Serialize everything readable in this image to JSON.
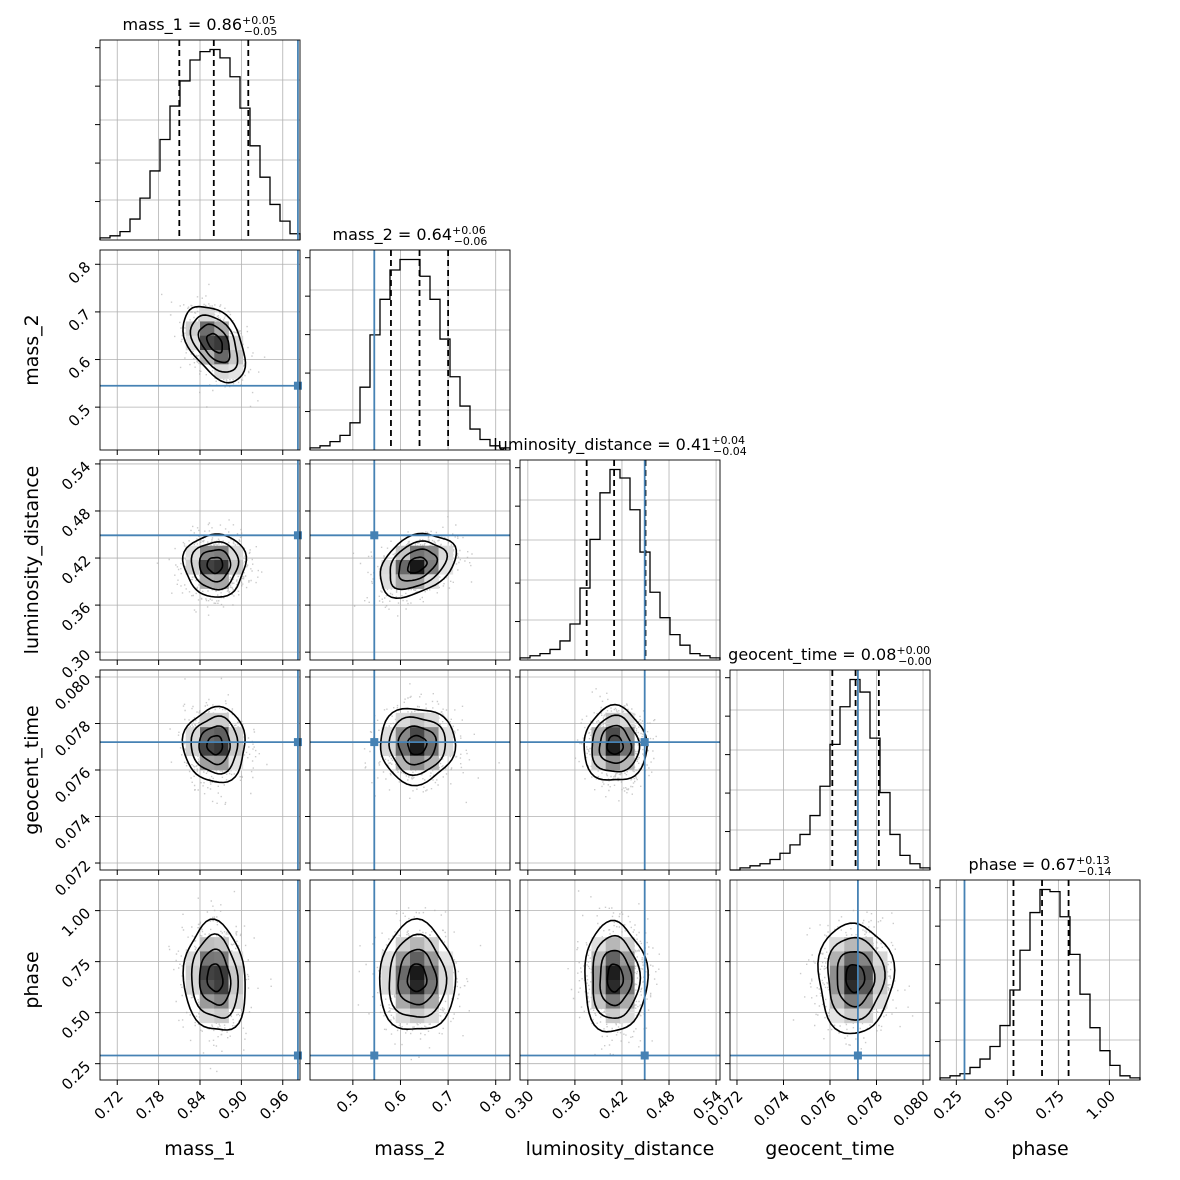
{
  "chart_data": {
    "type": "corner",
    "parameters": [
      {
        "name": "mass_1",
        "range": [
          0.695,
          0.985
        ],
        "ticks": [
          0.72,
          0.78,
          0.84,
          0.9,
          0.96
        ],
        "tick_labels": [
          "0.72",
          "0.78",
          "0.84",
          "0.90",
          "0.96"
        ],
        "truth": 0.982,
        "median": 0.86,
        "quantiles": [
          0.81,
          0.86,
          0.91
        ],
        "title": {
          "lead": "mass_1 = 0.86",
          "plus": "+0.05",
          "minus": "−0.05"
        },
        "hist_counts": [
          1,
          2,
          4,
          10,
          20,
          33,
          48,
          64,
          76,
          86,
          90,
          91,
          87,
          78,
          63,
          45,
          30,
          17,
          9,
          3
        ]
      },
      {
        "name": "mass_2",
        "range": [
          0.41,
          0.83
        ],
        "ticks": [
          0.5,
          0.6,
          0.7,
          0.8
        ],
        "tick_labels": [
          "0.5",
          "0.6",
          "0.7",
          "0.8"
        ],
        "truth": 0.545,
        "median": 0.64,
        "quantiles": [
          0.58,
          0.64,
          0.7
        ],
        "title": {
          "lead": "mass_2 = 0.64",
          "plus": "+0.06",
          "minus": "−0.06"
        },
        "hist_counts": [
          1,
          2,
          4,
          7,
          13,
          30,
          55,
          72,
          86,
          91,
          91,
          83,
          72,
          53,
          35,
          21,
          10,
          5,
          2,
          1
        ]
      },
      {
        "name": "luminosity_distance",
        "range": [
          0.29,
          0.545
        ],
        "ticks": [
          0.3,
          0.36,
          0.42,
          0.48,
          0.54
        ],
        "tick_labels": [
          "0.30",
          "0.36",
          "0.42",
          "0.48",
          "0.54"
        ],
        "truth": 0.449,
        "median": 0.41,
        "quantiles": [
          0.375,
          0.41,
          0.45
        ],
        "title": {
          "lead": "luminosity_distance = 0.41",
          "plus": "+0.04",
          "minus": "−0.04"
        },
        "hist_counts": [
          1,
          2,
          3,
          5,
          9,
          17,
          34,
          57,
          79,
          90,
          86,
          71,
          51,
          32,
          20,
          12,
          7,
          3,
          2,
          1
        ]
      },
      {
        "name": "geocent_time",
        "range": [
          0.0717,
          0.0803
        ],
        "ticks": [
          0.072,
          0.074,
          0.076,
          0.078,
          0.08
        ],
        "tick_labels": [
          "0.072",
          "0.074",
          "0.076",
          "0.078",
          "0.080"
        ],
        "truth": 0.0772,
        "median": 0.08,
        "quantiles": [
          0.0761,
          0.0771,
          0.0781
        ],
        "title": {
          "lead": "geocent_time = 0.08",
          "plus": "+0.00",
          "minus": "−0.00"
        },
        "hist_counts": [
          0,
          1,
          2,
          3,
          5,
          8,
          12,
          17,
          26,
          40,
          60,
          78,
          91,
          85,
          63,
          37,
          17,
          7,
          3,
          1
        ]
      },
      {
        "name": "phase",
        "range": [
          0.17,
          1.15
        ],
        "ticks": [
          0.25,
          0.5,
          0.75,
          1.0
        ],
        "tick_labels": [
          "0.25",
          "0.50",
          "0.75",
          "1.00"
        ],
        "truth": 0.29,
        "median": 0.67,
        "quantiles": [
          0.53,
          0.67,
          0.8
        ],
        "title": {
          "lead": "phase = 0.67",
          "plus": "+0.13",
          "minus": "−0.14"
        },
        "hist_counts": [
          1,
          2,
          3,
          6,
          10,
          16,
          26,
          43,
          62,
          80,
          91,
          90,
          78,
          60,
          41,
          25,
          14,
          7,
          2,
          1
        ]
      }
    ],
    "pair_correlations": {
      "1-0": -0.45,
      "2-0": 0.0,
      "2-1": 0.35,
      "3-0": 0.0,
      "3-1": 0.0,
      "3-2": 0.0,
      "4-0": -0.1,
      "4-1": 0.0,
      "4-2": 0.0,
      "4-3": 0.0
    },
    "contour_levels_sigma": [
      0.5,
      1.0,
      1.5,
      2.0
    ],
    "grid": true,
    "colors": {
      "truth": "#4682b4",
      "hist": "#000000",
      "points": "#a0a0a0"
    }
  }
}
